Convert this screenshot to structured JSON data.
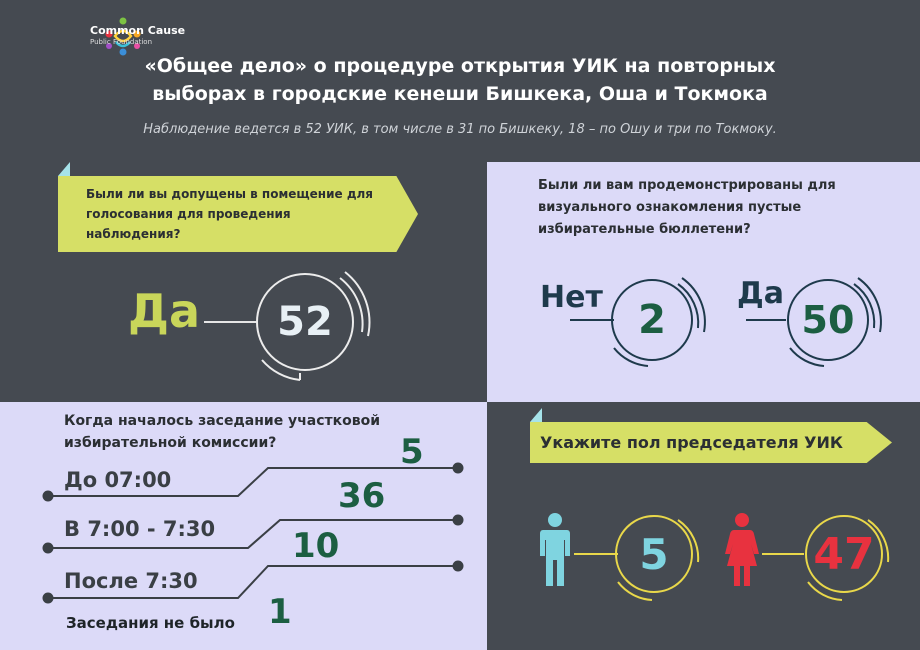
{
  "header": {
    "logo_name": "Common Cause",
    "logo_sub": "Public Foundation",
    "title_line1": "«Общее дело» о процедуре открытия УИК на повторных",
    "title_line2": "выборах в городские кенеши Бишкека, Оша и Токмока",
    "subtitle": "Наблюдение ведется в 52 УИК, в том числе в 31 по Бишкеку, 18 – по Ошу и три по Токмоку."
  },
  "q1": {
    "question": "Были ли вы допущены в помещение для голосования для проведения наблюдения?",
    "answer_label": "Да",
    "answer_value": "52"
  },
  "q2": {
    "question": "Были ли вам продемонстрированы для визуального ознакомления пустые избирательные бюллетени?",
    "no_label": "Нет",
    "no_value": "2",
    "yes_label": "Да",
    "yes_value": "50"
  },
  "q3": {
    "question": "Когда началось заседание участковой избирательной комиссии?",
    "items": [
      {
        "label": "До 07:00",
        "value": "5"
      },
      {
        "label": "В 7:00 - 7:30",
        "value": "36"
      },
      {
        "label": "После 7:30",
        "value": "10"
      },
      {
        "label": "Заседания не было",
        "value": "1"
      }
    ]
  },
  "q4": {
    "question": "Укажите пол председателя УИК",
    "male_value": "5",
    "female_value": "47"
  },
  "colors": {
    "dark_bg": "#454a51",
    "lavender": "#dcdaf8",
    "yellow": "#d6df66",
    "cyan": "#7fd4e0",
    "green": "#1c5e42",
    "navy": "#1e3a4c",
    "red": "#e8323f",
    "ring_yellow": "#e9d84a"
  }
}
